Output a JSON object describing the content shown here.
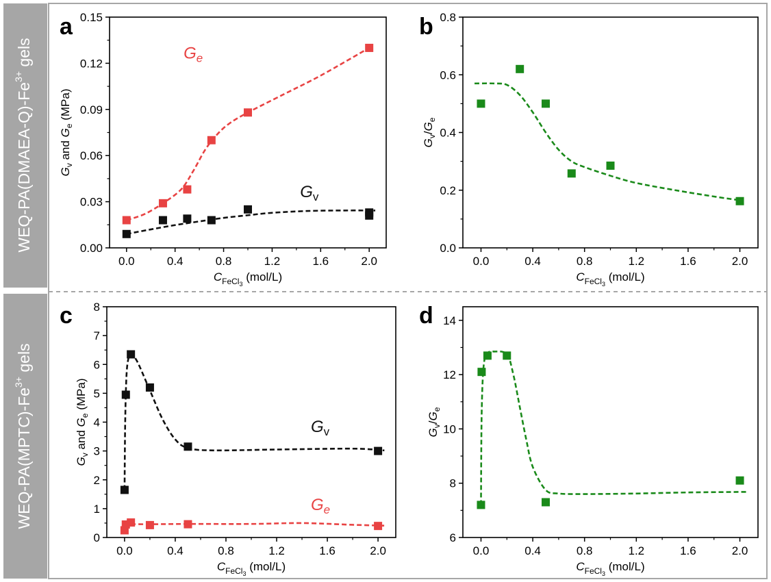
{
  "row_labels": {
    "top": {
      "prefix": "WEQ-PA(DMAEA-Q)-Fe",
      "sup": "3+",
      "suffix": " gels"
    },
    "bottom": {
      "prefix": "WEQ-PA(MPTC)-Fe",
      "sup": "3+",
      "suffix": " gels"
    }
  },
  "colors": {
    "red": "#e84343",
    "black": "#111111",
    "green": "#1a8a1a",
    "panel_bg": "#a6a6a6",
    "border": "#a6a6a6"
  },
  "xaxis_label": {
    "main": "C",
    "sub": "FeCl",
    "subsub": "3",
    "unit": " (mol/L)"
  },
  "ylabel_g": {
    "g1": "G",
    "s1": "v",
    "mid": " and ",
    "g2": "G",
    "s2": "e",
    "unit": " (MPa)"
  },
  "ylabel_ratio": {
    "g1": "G",
    "s1": "v",
    "slash": "/",
    "g2": "G",
    "s2": "e"
  },
  "chart_data": [
    {
      "panel": "a",
      "type": "scatter",
      "xlim": [
        -0.14,
        2.14
      ],
      "ylim": [
        0,
        0.15
      ],
      "xticks": [
        "0.0",
        "0.4",
        "0.8",
        "1.2",
        "1.6",
        "2.0"
      ],
      "yticks": [
        "0.00",
        "0.03",
        "0.06",
        "0.09",
        "0.12",
        "0.15"
      ],
      "series": [
        {
          "name": "Ge",
          "label_main": "G",
          "label_sub": "e",
          "label_style": "italic-sub",
          "label_pos": [
            0.47,
            0.123
          ],
          "color": "red",
          "x": [
            0,
            0.3,
            0.5,
            0.7,
            1.0,
            2.0
          ],
          "y": [
            0.018,
            0.029,
            0.038,
            0.07,
            0.088,
            0.13
          ],
          "fit_x": [
            0,
            0.15,
            0.3,
            0.45,
            0.55,
            0.65,
            0.75,
            0.85,
            1.0,
            1.3,
            1.6,
            2.0
          ],
          "fit_y": [
            0.018,
            0.022,
            0.029,
            0.038,
            0.05,
            0.064,
            0.074,
            0.081,
            0.088,
            0.1,
            0.112,
            0.13
          ]
        },
        {
          "name": "Gv",
          "label_main": "G",
          "label_sub": "v",
          "label_style": "upright-sub",
          "label_pos": [
            1.43,
            0.033
          ],
          "color": "black",
          "x": [
            0,
            0.3,
            0.5,
            0.7,
            1.0,
            2.0,
            2.0
          ],
          "y": [
            0.009,
            0.018,
            0.019,
            0.018,
            0.025,
            0.023,
            0.021
          ],
          "fit_x": [
            0,
            0.2,
            0.4,
            0.6,
            0.8,
            1.0,
            1.2,
            1.5,
            1.8,
            2.05
          ],
          "fit_y": [
            0.009,
            0.012,
            0.0148,
            0.0172,
            0.0195,
            0.0212,
            0.0228,
            0.024,
            0.0243,
            0.0243
          ]
        }
      ]
    },
    {
      "panel": "b",
      "type": "scatter",
      "xlim": [
        -0.14,
        2.14
      ],
      "ylim": [
        0,
        0.8
      ],
      "xticks": [
        "0.0",
        "0.4",
        "0.8",
        "1.2",
        "1.6",
        "2.0"
      ],
      "yticks": [
        "0.0",
        "0.2",
        "0.4",
        "0.6",
        "0.8"
      ],
      "series": [
        {
          "name": "Gv/Ge",
          "color": "green",
          "x": [
            0,
            0.3,
            0.5,
            0.7,
            1.0,
            2.0
          ],
          "y": [
            0.5,
            0.62,
            0.5,
            0.258,
            0.285,
            0.162
          ],
          "fit_x": [
            -0.05,
            0.1,
            0.2,
            0.3,
            0.4,
            0.5,
            0.6,
            0.7,
            0.8,
            1.0,
            1.2,
            1.5,
            1.8,
            2.0
          ],
          "fit_y": [
            0.57,
            0.57,
            0.565,
            0.53,
            0.47,
            0.4,
            0.34,
            0.3,
            0.28,
            0.25,
            0.225,
            0.2,
            0.178,
            0.165
          ]
        }
      ]
    },
    {
      "panel": "c",
      "type": "scatter",
      "xlim": [
        -0.14,
        2.14
      ],
      "ylim": [
        0,
        8
      ],
      "xticks": [
        "0.0",
        "0.4",
        "0.8",
        "1.2",
        "1.6",
        "2.0"
      ],
      "yticks": [
        "0",
        "1",
        "2",
        "3",
        "4",
        "5",
        "6",
        "7",
        "8"
      ],
      "series": [
        {
          "name": "Gv",
          "label_main": "G",
          "label_sub": "v",
          "label_style": "upright-sub",
          "label_pos": [
            1.47,
            3.65
          ],
          "color": "black",
          "x": [
            0,
            0.01,
            0.05,
            0.2,
            0.5,
            2.0
          ],
          "y": [
            1.65,
            4.95,
            6.35,
            5.2,
            3.15,
            3.0
          ],
          "fit_x": [
            0,
            0.005,
            0.015,
            0.03,
            0.05,
            0.1,
            0.2,
            0.3,
            0.4,
            0.5,
            0.7,
            1.2,
            1.8,
            2.05
          ],
          "fit_y": [
            1.65,
            4.0,
            5.6,
            6.2,
            6.35,
            6.1,
            5.1,
            4.1,
            3.4,
            3.1,
            3.02,
            3.05,
            3.08,
            3.02
          ]
        },
        {
          "name": "Ge",
          "label_main": "G",
          "label_sub": "e",
          "label_style": "italic-sub",
          "label_pos": [
            1.47,
            0.95
          ],
          "color": "red",
          "x": [
            0,
            0.01,
            0.05,
            0.2,
            0.5,
            2.0
          ],
          "y": [
            0.25,
            0.45,
            0.52,
            0.43,
            0.46,
            0.4
          ],
          "fit_x": [
            0,
            0.02,
            0.05,
            0.2,
            0.5,
            1.0,
            1.4,
            1.8,
            2.05
          ],
          "fit_y": [
            0.35,
            0.44,
            0.46,
            0.46,
            0.47,
            0.47,
            0.5,
            0.44,
            0.41
          ]
        }
      ]
    },
    {
      "panel": "d",
      "type": "scatter",
      "xlim": [
        -0.14,
        2.14
      ],
      "ylim": [
        6,
        14.5
      ],
      "xticks": [
        "0.0",
        "0.4",
        "0.8",
        "1.2",
        "1.6",
        "2.0"
      ],
      "yticks": [
        "6",
        "8",
        "10",
        "12",
        "14"
      ],
      "series": [
        {
          "name": "Gv/Ge",
          "color": "green",
          "x": [
            0,
            0.005,
            0.05,
            0.2,
            0.5,
            2.0
          ],
          "y": [
            7.2,
            12.1,
            12.7,
            12.7,
            7.3,
            8.1
          ],
          "fit_x": [
            0,
            0.005,
            0.02,
            0.05,
            0.1,
            0.2,
            0.25,
            0.3,
            0.35,
            0.4,
            0.5,
            0.6,
            0.8,
            1.2,
            1.6,
            2.05
          ],
          "fit_y": [
            7.2,
            10.5,
            12.3,
            12.78,
            12.85,
            12.75,
            12.0,
            10.8,
            9.6,
            8.6,
            7.75,
            7.62,
            7.6,
            7.62,
            7.66,
            7.68
          ]
        }
      ]
    }
  ]
}
